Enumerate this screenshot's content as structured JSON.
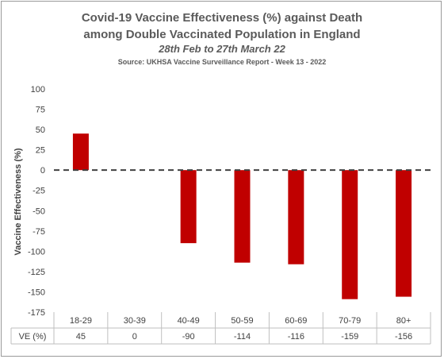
{
  "chart_data": {
    "type": "bar",
    "title_line1": "Covid-19 Vaccine Effectiveness (%) against Death",
    "title_line2": "among Double Vaccinated Population in England",
    "subtitle": "28th Feb to 27th March 22",
    "source": "Source: UKHSA Vaccine Surveillance Report - Week 13 - 2022",
    "ylabel": "Vaccine Effectiveness (%)",
    "xlabel": "",
    "ylim": [
      -175,
      100
    ],
    "yticks": [
      100,
      75,
      50,
      25,
      0,
      -25,
      -50,
      -75,
      -100,
      -125,
      -150,
      -175
    ],
    "categories": [
      "18-29",
      "30-39",
      "40-49",
      "50-59",
      "60-69",
      "70-79",
      "80+"
    ],
    "series": [
      {
        "values": [
          45,
          0,
          -90,
          -114,
          -116,
          -159,
          -156
        ]
      }
    ],
    "table_row_label": "VE (%)",
    "table_values": [
      "45",
      "0",
      "-90",
      "-114",
      "-116",
      "-159",
      "-156"
    ],
    "bar_color": "#c00000",
    "grid": false,
    "zero_line": "dashed",
    "legend": "none"
  }
}
